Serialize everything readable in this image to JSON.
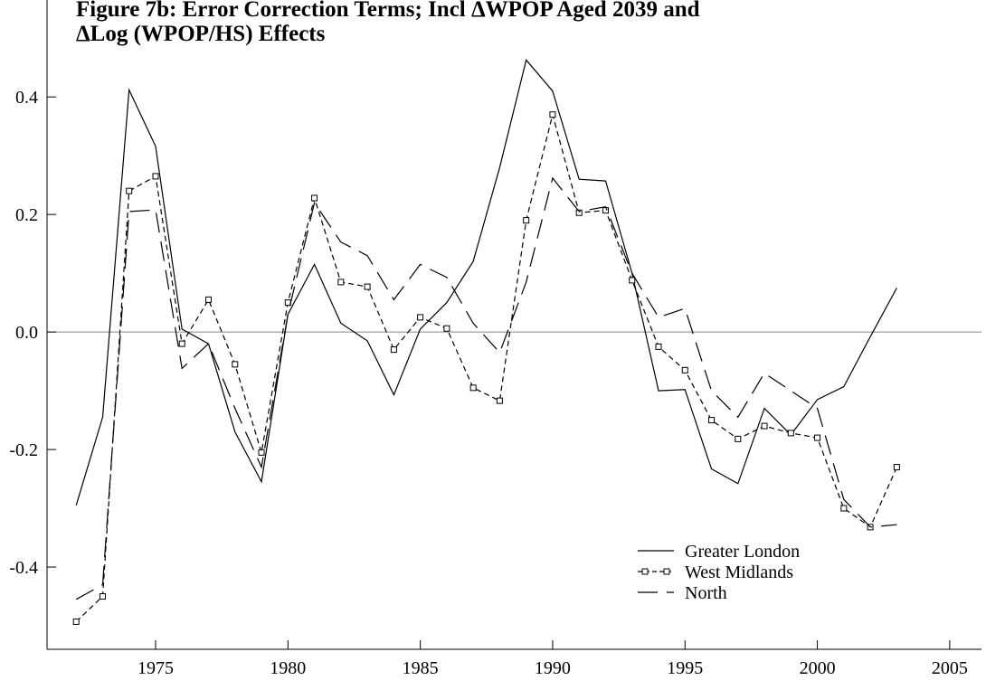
{
  "chart_data": {
    "type": "line",
    "title_lines": [
      "Figure 7b: Error Correction Terms; Incl ΔWPOP Aged 2039 and",
      "ΔLog (WPOP/HS) Effects"
    ],
    "x": [
      1972,
      1973,
      1974,
      1975,
      1976,
      1977,
      1978,
      1979,
      1980,
      1981,
      1982,
      1983,
      1984,
      1985,
      1986,
      1987,
      1988,
      1989,
      1990,
      1991,
      1992,
      1993,
      1994,
      1995,
      1996,
      1997,
      1998,
      1999,
      2000,
      2001,
      2002,
      2003
    ],
    "series": [
      {
        "name": "Greater London",
        "color": "#000000",
        "dash": "none",
        "marker": "none",
        "values": [
          -0.295,
          -0.145,
          0.412,
          0.316,
          0.005,
          -0.02,
          -0.17,
          -0.255,
          0.03,
          0.115,
          0.015,
          -0.015,
          -0.107,
          0.005,
          0.05,
          0.12,
          0.28,
          0.463,
          0.41,
          0.26,
          0.257,
          0.1,
          -0.1,
          -0.098,
          -0.233,
          -0.258,
          -0.13,
          -0.175,
          -0.115,
          -0.093,
          -0.008,
          0.075
        ]
      },
      {
        "name": "West Midlands",
        "color": "#000000",
        "dash": "6,4",
        "marker": "square",
        "values": [
          -0.493,
          -0.45,
          0.24,
          0.265,
          -0.02,
          0.055,
          -0.055,
          -0.205,
          0.05,
          0.228,
          0.085,
          0.077,
          -0.03,
          0.025,
          0.006,
          -0.095,
          -0.117,
          0.19,
          0.37,
          0.203,
          0.207,
          0.088,
          -0.025,
          -0.065,
          -0.15,
          -0.182,
          -0.16,
          -0.172,
          -0.18,
          -0.3,
          -0.332,
          -0.23
        ]
      },
      {
        "name": "North",
        "color": "#000000",
        "dash": "22,10",
        "marker": "none",
        "values": [
          -0.455,
          -0.43,
          0.205,
          0.208,
          -0.062,
          -0.02,
          -0.13,
          -0.23,
          0.03,
          0.22,
          0.153,
          0.13,
          0.055,
          0.115,
          0.093,
          0.015,
          -0.035,
          0.085,
          0.262,
          0.205,
          0.213,
          0.1,
          0.025,
          0.04,
          -0.1,
          -0.145,
          -0.07,
          -0.1,
          -0.13,
          -0.285,
          -0.332,
          -0.328
        ]
      }
    ],
    "xlim": [
      1970.9,
      2006.2
    ],
    "xticks": [
      1975,
      1980,
      1985,
      1990,
      1995,
      2000,
      2005
    ],
    "ylim": [
      -0.54,
      0.565
    ],
    "yticks": [
      -0.4,
      -0.2,
      {
        "value": 0,
        "label": "0.0"
      },
      0.2,
      0.4
    ],
    "zero_line": true,
    "legend": "lower right"
  }
}
